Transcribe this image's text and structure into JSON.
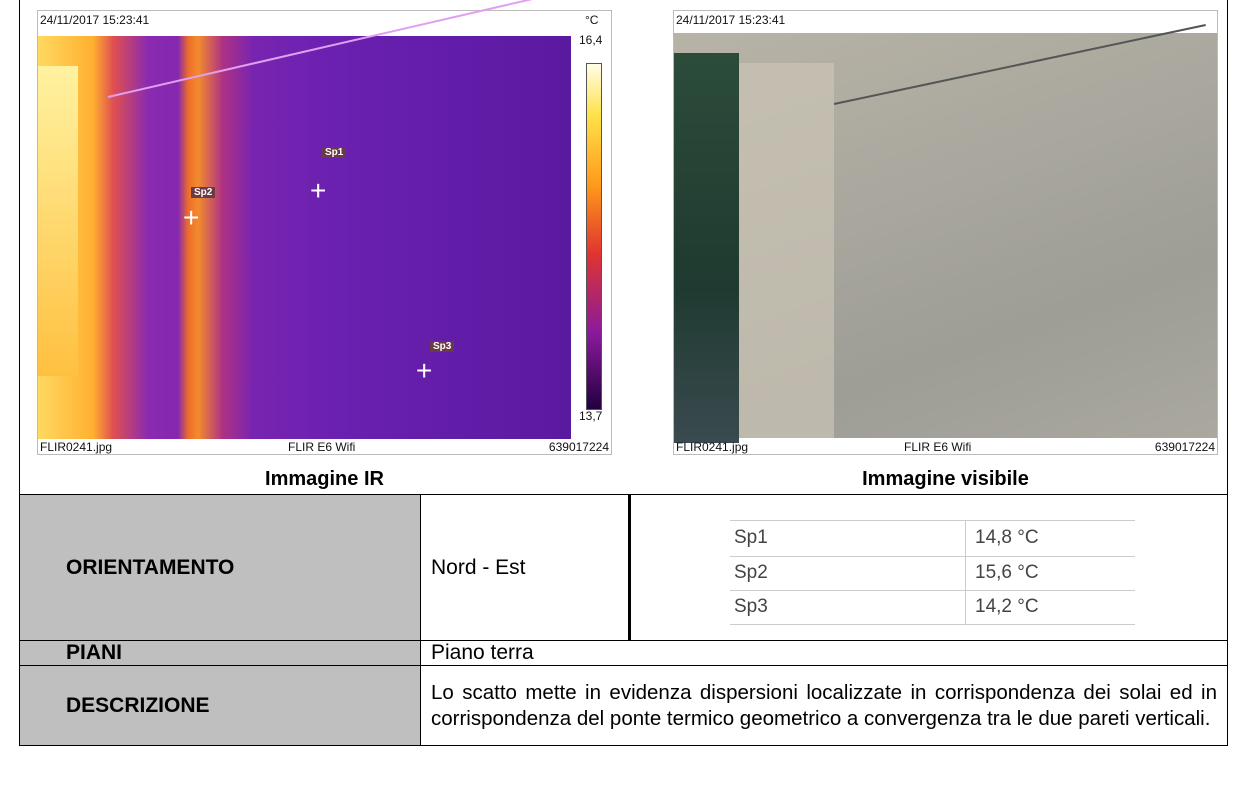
{
  "images": [
    {
      "timestamp": "24/11/2017 15:23:41",
      "unit": "°C",
      "scale_max": "16,4",
      "scale_min": "13,7",
      "spots": [
        "Sp1",
        "Sp2",
        "Sp3"
      ],
      "file": "FLIR0241.jpg",
      "camera": "FLIR E6 Wifi",
      "serial": "639017224",
      "caption": "Immagine IR"
    },
    {
      "timestamp": "24/11/2017 15:23:41",
      "file": "FLIR0241.jpg",
      "camera": "FLIR E6 Wifi",
      "serial": "639017224",
      "caption": "Immagine visibile"
    }
  ],
  "table": {
    "rows": [
      {
        "label": "ORIENTAMENTO",
        "value": "Nord - Est",
        "spots": [
          [
            "Sp1",
            "14,8 °C"
          ],
          [
            "Sp2",
            "15,6 °C"
          ],
          [
            "Sp3",
            "14,2 °C"
          ]
        ]
      },
      {
        "label": "PIANI",
        "value": "Piano terra"
      },
      {
        "label": "DESCRIZIONE",
        "value": "Lo scatto mette in evidenza dispersioni localizzate in corrispondenza dei solai ed in corrispondenza del ponte termico geometrico a convergenza tra le due pareti verticali."
      }
    ]
  }
}
